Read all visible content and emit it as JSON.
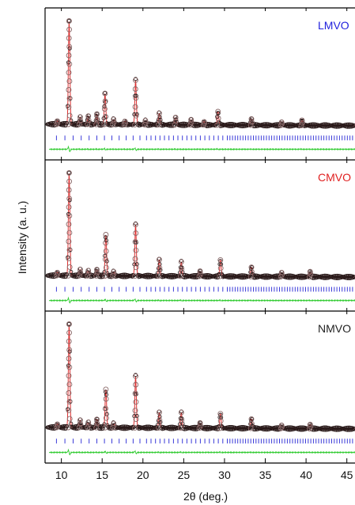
{
  "chart_data": {
    "type": "scatter",
    "xlabel": "2θ (deg.)",
    "ylabel": "Intensity (a. u.)",
    "xlim": [
      8,
      46
    ],
    "x_ticks": [
      10,
      15,
      20,
      25,
      30,
      35,
      40,
      45
    ],
    "grid": false,
    "legend": "none",
    "series_styles": {
      "observed": "open circles",
      "calculated": "red line",
      "bragg_positions": "blue ticks",
      "difference": "green line"
    },
    "panels": [
      {
        "label": "LMVO",
        "label_color": "#2222dd",
        "peaks": [
          {
            "x": 9.5,
            "y": 0.03
          },
          {
            "x": 10.95,
            "y": 1.0
          },
          {
            "x": 12.3,
            "y": 0.07
          },
          {
            "x": 13.3,
            "y": 0.08
          },
          {
            "x": 14.35,
            "y": 0.1
          },
          {
            "x": 15.35,
            "y": 0.3
          },
          {
            "x": 16.4,
            "y": 0.05
          },
          {
            "x": 17.8,
            "y": 0.03
          },
          {
            "x": 19.1,
            "y": 0.43
          },
          {
            "x": 20.3,
            "y": 0.04
          },
          {
            "x": 22.0,
            "y": 0.11
          },
          {
            "x": 24.0,
            "y": 0.07
          },
          {
            "x": 25.9,
            "y": 0.05
          },
          {
            "x": 27.5,
            "y": 0.03
          },
          {
            "x": 29.2,
            "y": 0.13
          },
          {
            "x": 33.3,
            "y": 0.06
          },
          {
            "x": 37.0,
            "y": 0.03
          },
          {
            "x": 39.5,
            "y": 0.05
          }
        ]
      },
      {
        "label": "CMVO",
        "label_color": "#e02020",
        "peaks": [
          {
            "x": 9.5,
            "y": 0.03
          },
          {
            "x": 10.95,
            "y": 1.0
          },
          {
            "x": 12.3,
            "y": 0.06
          },
          {
            "x": 13.3,
            "y": 0.05
          },
          {
            "x": 14.35,
            "y": 0.06
          },
          {
            "x": 15.45,
            "y": 0.4
          },
          {
            "x": 16.4,
            "y": 0.04
          },
          {
            "x": 19.1,
            "y": 0.5
          },
          {
            "x": 22.0,
            "y": 0.16
          },
          {
            "x": 24.7,
            "y": 0.14
          },
          {
            "x": 27.0,
            "y": 0.05
          },
          {
            "x": 29.5,
            "y": 0.16
          },
          {
            "x": 33.3,
            "y": 0.09
          },
          {
            "x": 37.0,
            "y": 0.04
          },
          {
            "x": 40.5,
            "y": 0.05
          }
        ]
      },
      {
        "label": "NMVO",
        "label_color": "#222222",
        "peaks": [
          {
            "x": 9.5,
            "y": 0.03
          },
          {
            "x": 10.95,
            "y": 1.0
          },
          {
            "x": 12.3,
            "y": 0.07
          },
          {
            "x": 13.3,
            "y": 0.05
          },
          {
            "x": 14.35,
            "y": 0.08
          },
          {
            "x": 15.45,
            "y": 0.37
          },
          {
            "x": 16.4,
            "y": 0.04
          },
          {
            "x": 19.1,
            "y": 0.5
          },
          {
            "x": 22.0,
            "y": 0.15
          },
          {
            "x": 24.7,
            "y": 0.15
          },
          {
            "x": 27.0,
            "y": 0.05
          },
          {
            "x": 29.5,
            "y": 0.14
          },
          {
            "x": 33.3,
            "y": 0.09
          },
          {
            "x": 37.0,
            "y": 0.03
          },
          {
            "x": 40.5,
            "y": 0.04
          }
        ]
      }
    ]
  }
}
